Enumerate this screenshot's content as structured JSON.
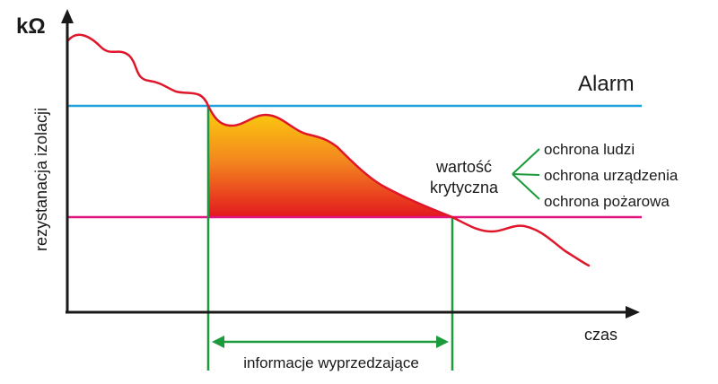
{
  "labels": {
    "y_unit": "kΩ",
    "y_axis": "rezystanacja izolacji",
    "x_axis": "czas",
    "alarm": "Alarm",
    "critical_line1": "wartość",
    "critical_line2": "krytyczna",
    "protections": [
      "ochrona ludzi",
      "ochrona urządzenia",
      "ochrona pożarowa"
    ],
    "interval": "informacje wyprzedzające"
  },
  "colors": {
    "axis": "#1a1a1a",
    "curve": "#e0162b",
    "alarm_line": "#1ea0dc",
    "critical_line": "#e0157f",
    "green": "#1a9a3a",
    "fill_top": "#fcd20b",
    "fill_mid": "#f3861f",
    "fill_bottom": "#e3181f"
  }
}
